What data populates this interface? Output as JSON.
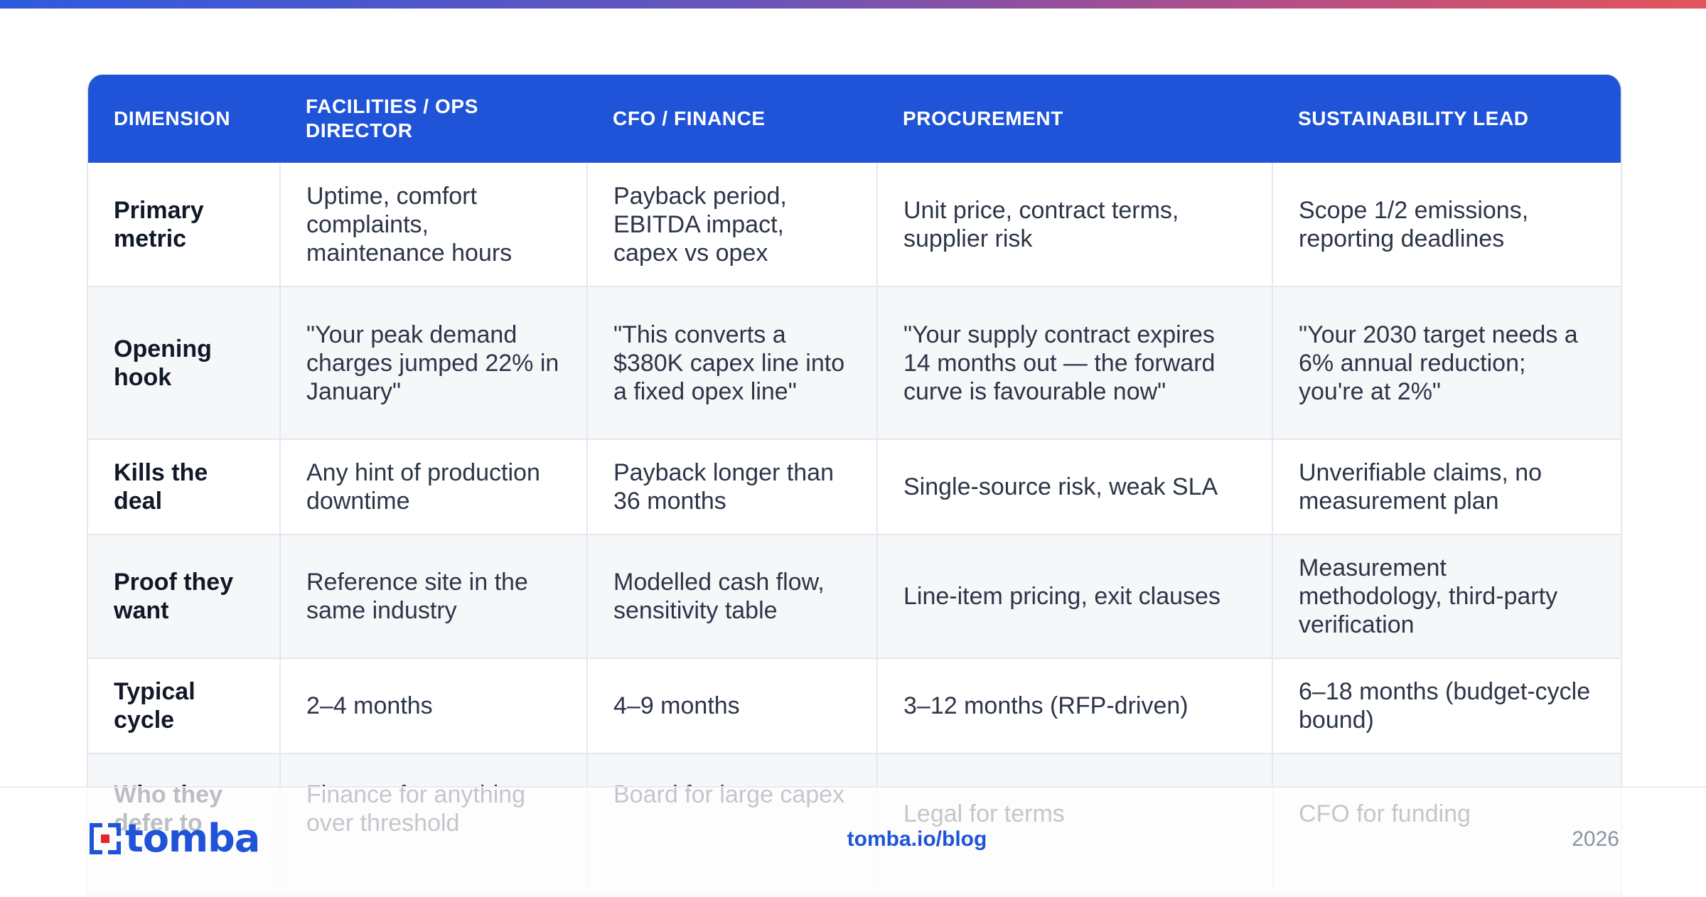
{
  "colors": {
    "accent": "#1f54d8",
    "header_text": "#ffffff",
    "alt_row": "#f6f7f9",
    "logo_red": "#e3262e"
  },
  "table": {
    "headers": [
      "DIMENSION",
      "FACILITIES / OPS DIRECTOR",
      "CFO / FINANCE",
      "PROCUREMENT",
      "SUSTAINABILITY LEAD"
    ],
    "rows": [
      [
        "Primary metric",
        "Uptime, comfort complaints, maintenance hours",
        "Payback period, EBITDA impact, capex vs opex",
        "Unit price, contract terms, supplier risk",
        "Scope 1/2 emissions, reporting deadlines"
      ],
      [
        "Opening hook",
        "\"Your peak demand charges jumped 22% in January\"",
        "\"This converts a $380K capex line into a fixed opex line\"",
        "\"Your supply contract expires 14 months out — the forward curve is favourable now\"",
        "\"Your 2030 target needs a 6% annual reduction; you're at 2%\""
      ],
      [
        "Kills the deal",
        "Any hint of production downtime",
        "Payback longer than 36 months",
        "Single-source risk, weak SLA",
        "Unverifiable claims, no measurement plan"
      ],
      [
        "Proof they want",
        "Reference site in the same industry",
        "Modelled cash flow, sensitivity table",
        "Line-item pricing, exit clauses",
        "Measurement methodology, third-party verification"
      ],
      [
        "Typical cycle",
        "2–4 months",
        "4–9 months",
        "3–12 months (RFP-driven)",
        "6–18 months (budget-cycle bound)"
      ],
      [
        "Who they defer to",
        "Finance for anything over threshold",
        "Board for large capex",
        "Legal for terms",
        "CFO for funding"
      ]
    ]
  },
  "footer": {
    "logo_text": "tomba",
    "logo_icon": "tomba-logo-icon",
    "link": "tomba.io/blog",
    "year": "2026"
  }
}
